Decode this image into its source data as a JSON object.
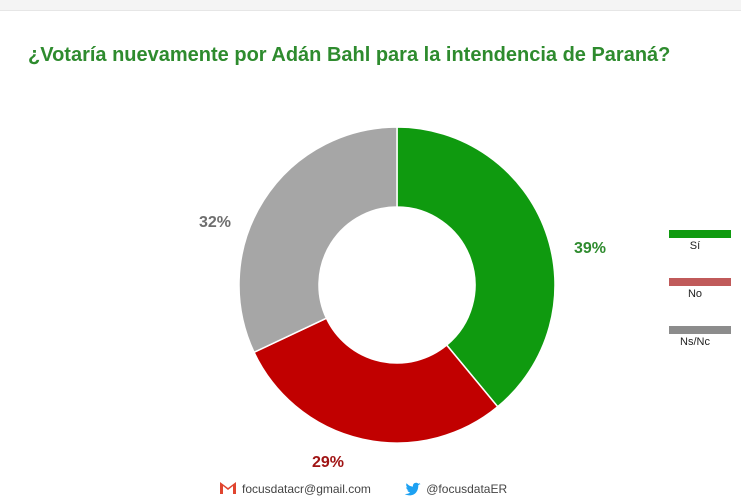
{
  "chart_data": {
    "type": "pie",
    "title": "¿Votaría nuevamente por Adán Bahl para la intendencia de Paraná?",
    "categories": [
      "Sí",
      "No",
      "Ns/Nc"
    ],
    "values": [
      39,
      29,
      32
    ],
    "labels": [
      "39%",
      "29%",
      "32%"
    ],
    "colors": [
      "#0f9a0f",
      "#c10000",
      "#a6a6a6"
    ],
    "label_colors": [
      "#2e8b2e",
      "#a01414",
      "#6e6e6e"
    ],
    "legend_colors": [
      "#0f9a0f",
      "#c05a5a",
      "#8c8c8c"
    ],
    "donut": true,
    "legend": "right"
  },
  "footer": {
    "email": "focusdatacr@gmail.com",
    "twitter": "@focusdataER",
    "email_icon": "gmail-icon",
    "twitter_icon": "twitter-icon"
  }
}
